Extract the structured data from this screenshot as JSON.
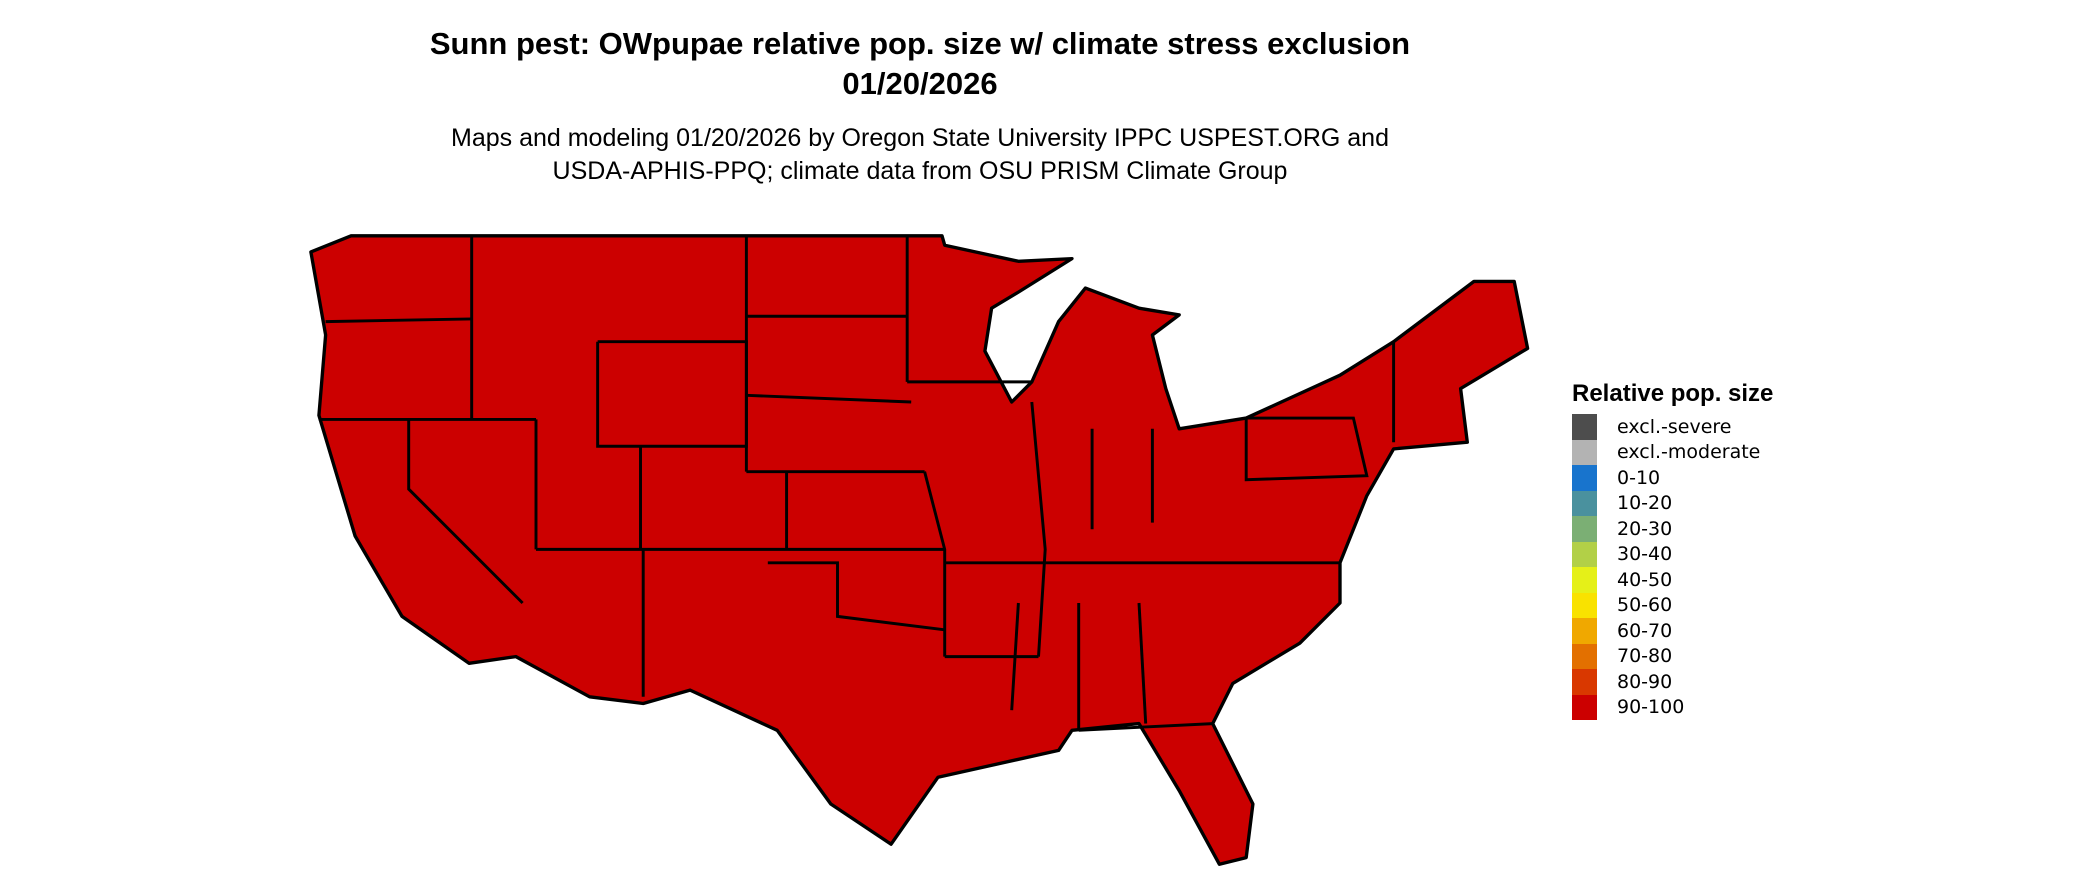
{
  "title": {
    "line1": "Sunn pest: OWpupae relative pop. size w/ climate stress exclusion",
    "line2": "01/20/2026"
  },
  "subtitle": {
    "line1": "Maps and modeling 01/20/2026 by Oregon State University IPPC USPEST.ORG and",
    "line2": "USDA-APHIS-PPQ; climate data from OSU PRISM Climate Group"
  },
  "map": {
    "region": "Contiguous United States",
    "fill_color": "#CC0000",
    "border_color": "#000000",
    "dominant_class": "90-100"
  },
  "legend": {
    "title": "Relative pop. size",
    "items": [
      {
        "label": "excl.-severe",
        "color": "#4D4D4D"
      },
      {
        "label": "excl.-moderate",
        "color": "#B3B3B3"
      },
      {
        "label": "0-10",
        "color": "#1874CD"
      },
      {
        "label": "10-20",
        "color": "#4A919E"
      },
      {
        "label": "20-30",
        "color": "#7BAF74"
      },
      {
        "label": "30-40",
        "color": "#B2D047"
      },
      {
        "label": "40-50",
        "color": "#E5F018"
      },
      {
        "label": "50-60",
        "color": "#F9E200"
      },
      {
        "label": "60-70",
        "color": "#F0A800"
      },
      {
        "label": "70-80",
        "color": "#E37000"
      },
      {
        "label": "80-90",
        "color": "#D93800"
      },
      {
        "label": "90-100",
        "color": "#CC0000"
      }
    ]
  }
}
